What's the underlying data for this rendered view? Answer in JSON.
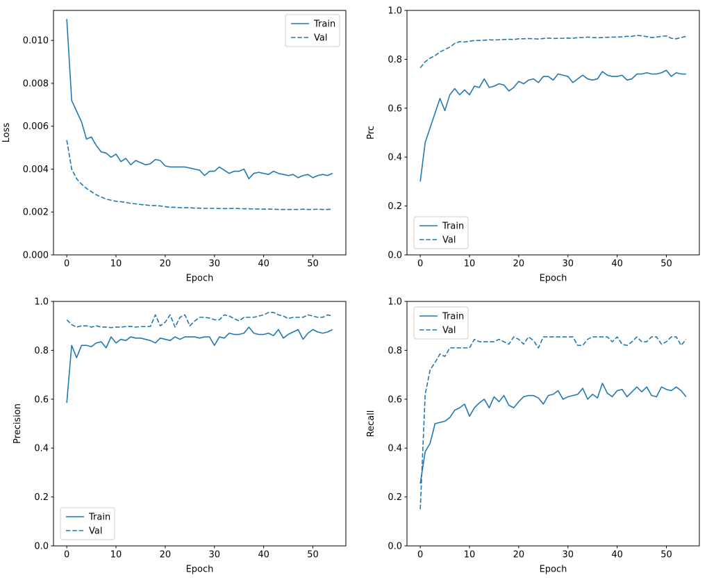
{
  "figure": {
    "description": "2x2 grid of training/validation metric curves over epochs",
    "colors": {
      "line": "#1f77b4",
      "spine": "#000000",
      "legend_edge": "#cccccc",
      "background": "#ffffff"
    }
  },
  "chart_data": [
    {
      "id": "loss",
      "type": "line",
      "title": "",
      "xlabel": "Epoch",
      "ylabel": "Loss",
      "ylabel_x": 13,
      "xlim": [
        -2.7,
        56.7
      ],
      "ylim": [
        0,
        0.0114
      ],
      "xticks": [
        0,
        10,
        20,
        30,
        40,
        50
      ],
      "yticks": [
        0,
        0.002,
        0.004,
        0.006,
        0.008,
        0.01
      ],
      "ytick_labels": [
        "0.000",
        "0.002",
        "0.004",
        "0.006",
        "0.008",
        "0.010"
      ],
      "grid": false,
      "legend": {
        "loc": "upper right",
        "entries": [
          "Train",
          "Val"
        ]
      },
      "series": [
        {
          "name": "Train",
          "style": "solid",
          "values": [
            0.011,
            0.0072,
            0.0067,
            0.0062,
            0.0054,
            0.0055,
            0.0051,
            0.0048,
            0.00475,
            0.00455,
            0.0047,
            0.00435,
            0.0045,
            0.0042,
            0.0044,
            0.0043,
            0.0042,
            0.00425,
            0.00445,
            0.0044,
            0.00415,
            0.0041,
            0.0041,
            0.0041,
            0.0041,
            0.00405,
            0.004,
            0.00395,
            0.0037,
            0.0039,
            0.0039,
            0.0041,
            0.00395,
            0.0038,
            0.0039,
            0.0039,
            0.004,
            0.00355,
            0.0038,
            0.00385,
            0.0038,
            0.00375,
            0.0039,
            0.0038,
            0.00375,
            0.0037,
            0.00375,
            0.0036,
            0.0037,
            0.00375,
            0.0036,
            0.0037,
            0.00375,
            0.0037,
            0.0038
          ]
        },
        {
          "name": "Val",
          "style": "dashed",
          "values": [
            0.00535,
            0.004,
            0.00355,
            0.0033,
            0.0031,
            0.00295,
            0.0028,
            0.0027,
            0.0026,
            0.00255,
            0.0025,
            0.00248,
            0.00245,
            0.0024,
            0.00238,
            0.00235,
            0.00233,
            0.0023,
            0.0023,
            0.00228,
            0.00225,
            0.00222,
            0.00222,
            0.0022,
            0.0022,
            0.0022,
            0.00218,
            0.00218,
            0.00217,
            0.00217,
            0.00217,
            0.00216,
            0.00216,
            0.00216,
            0.00217,
            0.00216,
            0.00215,
            0.00215,
            0.00214,
            0.00214,
            0.00213,
            0.00213,
            0.00213,
            0.00212,
            0.00212,
            0.00212,
            0.00212,
            0.00212,
            0.00213,
            0.00212,
            0.00212,
            0.00213,
            0.00212,
            0.00212,
            0.00213
          ]
        }
      ]
    },
    {
      "id": "prc",
      "type": "line",
      "title": "",
      "xlabel": "Epoch",
      "ylabel": "Prc",
      "ylabel_x": 29,
      "xlim": [
        -2.7,
        56.7
      ],
      "ylim": [
        0,
        1.0
      ],
      "xticks": [
        0,
        10,
        20,
        30,
        40,
        50
      ],
      "yticks": [
        0,
        0.2,
        0.4,
        0.6,
        0.8,
        1.0
      ],
      "ytick_labels": [
        "0.0",
        "0.2",
        "0.4",
        "0.6",
        "0.8",
        "1.0"
      ],
      "grid": false,
      "legend": {
        "loc": "lower left",
        "entries": [
          "Train",
          "Val"
        ]
      },
      "series": [
        {
          "name": "Train",
          "style": "solid",
          "values": [
            0.3,
            0.46,
            0.52,
            0.58,
            0.64,
            0.59,
            0.655,
            0.68,
            0.655,
            0.675,
            0.655,
            0.69,
            0.685,
            0.72,
            0.685,
            0.69,
            0.7,
            0.695,
            0.67,
            0.685,
            0.71,
            0.7,
            0.715,
            0.72,
            0.705,
            0.73,
            0.73,
            0.715,
            0.74,
            0.735,
            0.73,
            0.705,
            0.72,
            0.735,
            0.72,
            0.715,
            0.72,
            0.75,
            0.735,
            0.73,
            0.73,
            0.735,
            0.715,
            0.72,
            0.74,
            0.74,
            0.745,
            0.74,
            0.74,
            0.745,
            0.755,
            0.73,
            0.745,
            0.74,
            0.74
          ]
        },
        {
          "name": "Val",
          "style": "dashed",
          "values": [
            0.765,
            0.79,
            0.805,
            0.815,
            0.83,
            0.84,
            0.85,
            0.865,
            0.872,
            0.871,
            0.874,
            0.877,
            0.877,
            0.878,
            0.88,
            0.879,
            0.88,
            0.881,
            0.882,
            0.881,
            0.884,
            0.884,
            0.885,
            0.884,
            0.883,
            0.885,
            0.887,
            0.885,
            0.886,
            0.886,
            0.887,
            0.886,
            0.889,
            0.889,
            0.891,
            0.889,
            0.888,
            0.889,
            0.89,
            0.891,
            0.891,
            0.892,
            0.894,
            0.894,
            0.898,
            0.896,
            0.893,
            0.889,
            0.891,
            0.894,
            0.896,
            0.886,
            0.884,
            0.889,
            0.894
          ]
        }
      ]
    },
    {
      "id": "precision",
      "type": "line",
      "title": "",
      "xlabel": "Epoch",
      "ylabel": "Precision",
      "ylabel_x": 29,
      "xlim": [
        -2.7,
        56.7
      ],
      "ylim": [
        0,
        1.0
      ],
      "xticks": [
        0,
        10,
        20,
        30,
        40,
        50
      ],
      "yticks": [
        0,
        0.2,
        0.4,
        0.6,
        0.8,
        1.0
      ],
      "ytick_labels": [
        "0.0",
        "0.2",
        "0.4",
        "0.6",
        "0.8",
        "1.0"
      ],
      "grid": false,
      "legend": {
        "loc": "lower left",
        "entries": [
          "Train",
          "Val"
        ]
      },
      "series": [
        {
          "name": "Train",
          "style": "solid",
          "values": [
            0.585,
            0.82,
            0.77,
            0.82,
            0.82,
            0.815,
            0.83,
            0.835,
            0.81,
            0.855,
            0.83,
            0.845,
            0.84,
            0.855,
            0.85,
            0.85,
            0.845,
            0.84,
            0.83,
            0.85,
            0.845,
            0.84,
            0.855,
            0.845,
            0.855,
            0.855,
            0.855,
            0.85,
            0.855,
            0.855,
            0.82,
            0.855,
            0.85,
            0.87,
            0.865,
            0.865,
            0.87,
            0.895,
            0.87,
            0.865,
            0.865,
            0.87,
            0.86,
            0.885,
            0.85,
            0.865,
            0.875,
            0.885,
            0.845,
            0.87,
            0.885,
            0.875,
            0.87,
            0.875,
            0.885
          ]
        },
        {
          "name": "Val",
          "style": "dashed",
          "values": [
            0.925,
            0.905,
            0.895,
            0.9,
            0.9,
            0.895,
            0.9,
            0.895,
            0.895,
            0.893,
            0.895,
            0.895,
            0.897,
            0.898,
            0.895,
            0.897,
            0.897,
            0.898,
            0.945,
            0.9,
            0.915,
            0.945,
            0.895,
            0.935,
            0.945,
            0.9,
            0.92,
            0.935,
            0.935,
            0.932,
            0.925,
            0.925,
            0.945,
            0.94,
            0.93,
            0.92,
            0.935,
            0.935,
            0.935,
            0.94,
            0.945,
            0.955,
            0.955,
            0.945,
            0.94,
            0.93,
            0.935,
            0.935,
            0.935,
            0.945,
            0.94,
            0.935,
            0.935,
            0.945,
            0.94
          ]
        }
      ]
    },
    {
      "id": "recall",
      "type": "line",
      "title": "",
      "xlabel": "Epoch",
      "ylabel": "Recall",
      "ylabel_x": 29,
      "xlim": [
        -2.7,
        56.7
      ],
      "ylim": [
        0,
        1.0
      ],
      "xticks": [
        0,
        10,
        20,
        30,
        40,
        50
      ],
      "yticks": [
        0,
        0.2,
        0.4,
        0.6,
        0.8,
        1.0
      ],
      "ytick_labels": [
        "0.0",
        "0.2",
        "0.4",
        "0.6",
        "0.8",
        "1.0"
      ],
      "grid": false,
      "legend": {
        "loc": "upper left",
        "entries": [
          "Train",
          "Val"
        ]
      },
      "series": [
        {
          "name": "Train",
          "style": "solid",
          "values": [
            0.255,
            0.385,
            0.42,
            0.5,
            0.505,
            0.51,
            0.525,
            0.555,
            0.565,
            0.58,
            0.53,
            0.565,
            0.585,
            0.6,
            0.565,
            0.61,
            0.59,
            0.615,
            0.575,
            0.565,
            0.59,
            0.61,
            0.615,
            0.615,
            0.605,
            0.58,
            0.615,
            0.62,
            0.635,
            0.6,
            0.61,
            0.615,
            0.62,
            0.645,
            0.6,
            0.62,
            0.605,
            0.665,
            0.625,
            0.61,
            0.635,
            0.64,
            0.61,
            0.63,
            0.65,
            0.63,
            0.65,
            0.615,
            0.61,
            0.65,
            0.64,
            0.635,
            0.65,
            0.635,
            0.61
          ]
        },
        {
          "name": "Val",
          "style": "dashed",
          "values": [
            0.15,
            0.62,
            0.72,
            0.75,
            0.785,
            0.775,
            0.81,
            0.81,
            0.81,
            0.81,
            0.81,
            0.845,
            0.835,
            0.835,
            0.835,
            0.835,
            0.845,
            0.835,
            0.825,
            0.855,
            0.845,
            0.825,
            0.855,
            0.84,
            0.81,
            0.855,
            0.855,
            0.855,
            0.855,
            0.855,
            0.855,
            0.855,
            0.82,
            0.82,
            0.845,
            0.855,
            0.855,
            0.855,
            0.855,
            0.835,
            0.855,
            0.825,
            0.82,
            0.835,
            0.855,
            0.835,
            0.835,
            0.855,
            0.855,
            0.825,
            0.835,
            0.855,
            0.855,
            0.82,
            0.845
          ]
        }
      ]
    }
  ]
}
